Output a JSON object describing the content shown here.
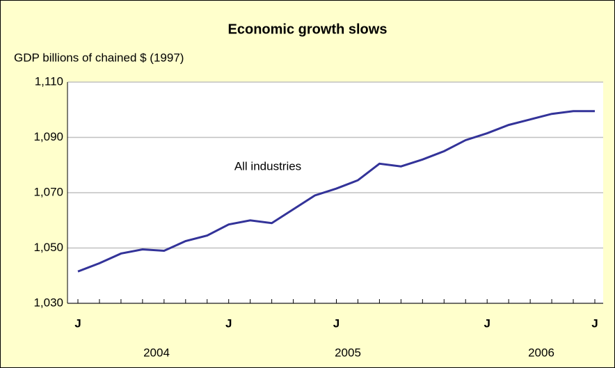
{
  "chart_data": {
    "type": "line",
    "title": "Economic growth slows",
    "subtitle": "GDP billions of chained $ (1997)",
    "categories": [
      "J",
      null,
      null,
      null,
      null,
      null,
      null,
      "J",
      null,
      null,
      null,
      null,
      "J",
      null,
      null,
      null,
      null,
      null,
      null,
      "J",
      null,
      null,
      null,
      null,
      "J"
    ],
    "year_labels": [
      "2004",
      "2005",
      "2006"
    ],
    "series": [
      {
        "name": "All industries",
        "color": "#333399",
        "values": [
          1041.5,
          1044.5,
          1048,
          1049.5,
          1049,
          1052.5,
          1054.5,
          1058.5,
          1060,
          1059,
          1064,
          1069,
          1071.5,
          1074.5,
          1080.5,
          1079.5,
          1082,
          1085,
          1089,
          1091.5,
          1094.5,
          1096.5,
          1098.5,
          1099.5,
          1099.5
        ]
      }
    ],
    "ylim": [
      1030,
      1110
    ],
    "yticks": [
      {
        "value": 1030,
        "label": "1,030"
      },
      {
        "value": 1050,
        "label": "1,050"
      },
      {
        "value": 1070,
        "label": "1,070"
      },
      {
        "value": 1090,
        "label": "1,090"
      },
      {
        "value": 1110,
        "label": "1,110"
      }
    ],
    "grid": true
  }
}
